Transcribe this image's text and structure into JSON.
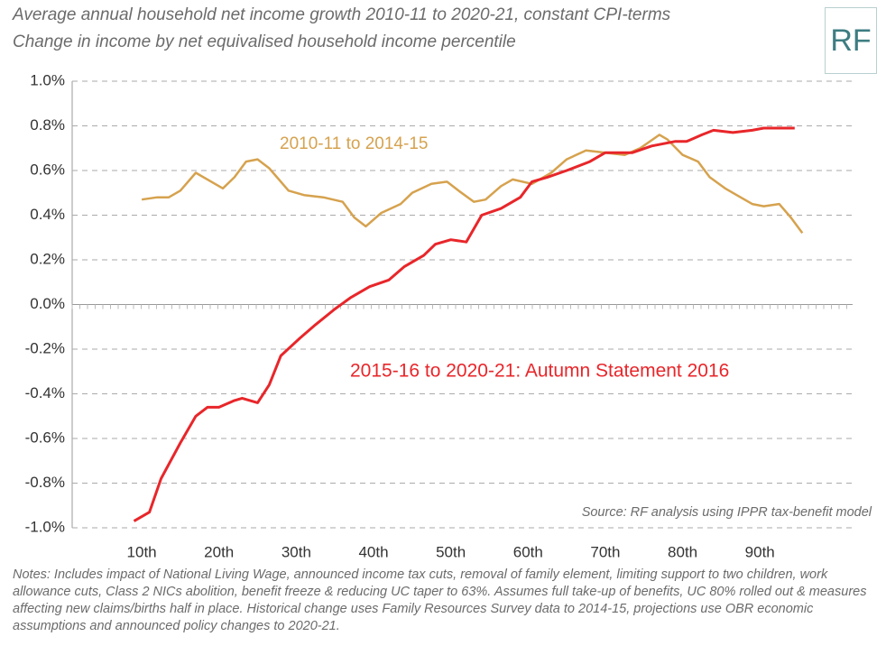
{
  "logo": "RF",
  "chart_data": {
    "type": "line",
    "title": "Average annual household net income growth 2010-11 to 2020-21, constant CPI-terms",
    "subtitle": "Change in income by net equivalised household income percentile",
    "source": "Source: RF analysis using IPPR tax-benefit model",
    "notes": "Notes: Includes impact of National Living Wage, announced income tax cuts, removal of family element, limiting support to two children, work allowance cuts, Class 2 NICs abolition, benefit freeze & reducing UC taper to 63%. Assumes full take-up of benefits, UC 80% rolled out & measures affecting new claims/births half in place. Historical change uses Family Resources Survey data to 2014-15, projections use OBR economic assumptions and announced policy changes to 2020-21.",
    "xlim": [
      1,
      102
    ],
    "xticks": [
      {
        "value": 10,
        "label": "10th"
      },
      {
        "value": 20,
        "label": "20th"
      },
      {
        "value": 30,
        "label": "30th"
      },
      {
        "value": 40,
        "label": "40th"
      },
      {
        "value": 50,
        "label": "50th"
      },
      {
        "value": 60,
        "label": "60th"
      },
      {
        "value": 70,
        "label": "70th"
      },
      {
        "value": 80,
        "label": "80th"
      },
      {
        "value": 90,
        "label": "90th"
      }
    ],
    "ylim": [
      -1.0,
      1.0
    ],
    "yticks": [
      {
        "value": -1.0,
        "label": "-1.0%"
      },
      {
        "value": -0.8,
        "label": "-0.8%"
      },
      {
        "value": -0.6,
        "label": "-0.6%"
      },
      {
        "value": -0.4,
        "label": "-0.4%"
      },
      {
        "value": -0.2,
        "label": "-0.2%"
      },
      {
        "value": 0,
        "label": "0.0%"
      },
      {
        "value": 0.2,
        "label": "0.2%"
      },
      {
        "value": 0.4,
        "label": "0.4%"
      },
      {
        "value": 0.6,
        "label": "0.6%"
      },
      {
        "value": 0.8,
        "label": "0.8%"
      },
      {
        "value": 1.0,
        "label": "1.0%"
      }
    ],
    "grid": true,
    "series": [
      {
        "name": "2010-11 to 2014-15",
        "color": "#d6a24e",
        "x": [
          10,
          12,
          13.5,
          15,
          17,
          19,
          20.5,
          22,
          23.5,
          25,
          26.5,
          29,
          31,
          33.5,
          36,
          37.5,
          39,
          41,
          43.5,
          45,
          47.5,
          49.5,
          51,
          53,
          54.5,
          56.5,
          58,
          60.5,
          63,
          65,
          67.5,
          70,
          72.5,
          74.5,
          77,
          78,
          80,
          82,
          83.5,
          85.5,
          87,
          89,
          90.5,
          92.5,
          94,
          95.5
        ],
        "values": [
          0.47,
          0.48,
          0.48,
          0.51,
          0.59,
          0.55,
          0.52,
          0.57,
          0.64,
          0.65,
          0.61,
          0.51,
          0.49,
          0.48,
          0.46,
          0.39,
          0.35,
          0.41,
          0.45,
          0.5,
          0.54,
          0.55,
          0.51,
          0.46,
          0.47,
          0.53,
          0.56,
          0.54,
          0.59,
          0.65,
          0.69,
          0.68,
          0.67,
          0.7,
          0.76,
          0.74,
          0.67,
          0.64,
          0.57,
          0.52,
          0.49,
          0.45,
          0.44,
          0.45,
          0.39,
          0.32
        ]
      },
      {
        "name": "2015-16 to 2020-21: Autumn Statement 2016",
        "color": "#e8262a",
        "x": [
          9,
          11,
          12.5,
          15,
          17,
          18.5,
          20,
          22,
          23,
          25,
          26.5,
          28,
          30.5,
          32.5,
          35,
          37,
          39.5,
          42,
          44,
          46.5,
          48,
          50,
          52,
          54,
          56.5,
          59,
          60.5,
          62.5,
          65,
          68,
          70,
          73.5,
          76,
          79,
          80.5,
          82.5,
          84,
          86.5,
          89,
          90.5,
          92.5,
          94.5
        ],
        "values": [
          -0.97,
          -0.93,
          -0.78,
          -0.62,
          -0.5,
          -0.46,
          -0.46,
          -0.43,
          -0.42,
          -0.44,
          -0.36,
          -0.23,
          -0.15,
          -0.09,
          -0.02,
          0.03,
          0.08,
          0.11,
          0.17,
          0.22,
          0.27,
          0.29,
          0.28,
          0.4,
          0.43,
          0.48,
          0.55,
          0.57,
          0.6,
          0.64,
          0.68,
          0.68,
          0.71,
          0.73,
          0.73,
          0.76,
          0.78,
          0.77,
          0.78,
          0.79,
          0.79,
          0.79
        ]
      }
    ]
  }
}
